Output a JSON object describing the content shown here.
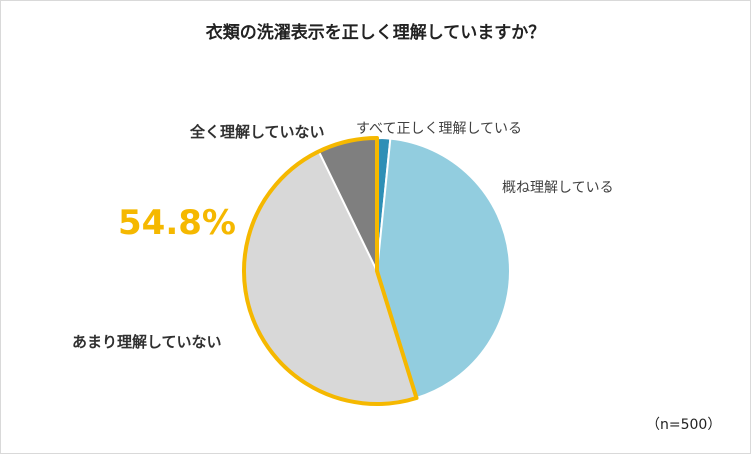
{
  "chart_data": {
    "type": "pie",
    "title": "衣類の洗濯表示を正しく理解していますか？",
    "sample_note": "（n=500）",
    "highlight_value": "54.8%",
    "slices": [
      {
        "label": "すべて正しく理解している",
        "value": 1.6,
        "color": "#2e8fb6"
      },
      {
        "label": "概ね理解している",
        "value": 43.6,
        "color": "#92cddf"
      },
      {
        "label": "あまり理解していない",
        "value": 47.6,
        "color": "#d8d8d8"
      },
      {
        "label": "全く理解していない",
        "value": 7.2,
        "color": "#7f7f7f"
      }
    ],
    "highlight_color": "#f5b800"
  }
}
